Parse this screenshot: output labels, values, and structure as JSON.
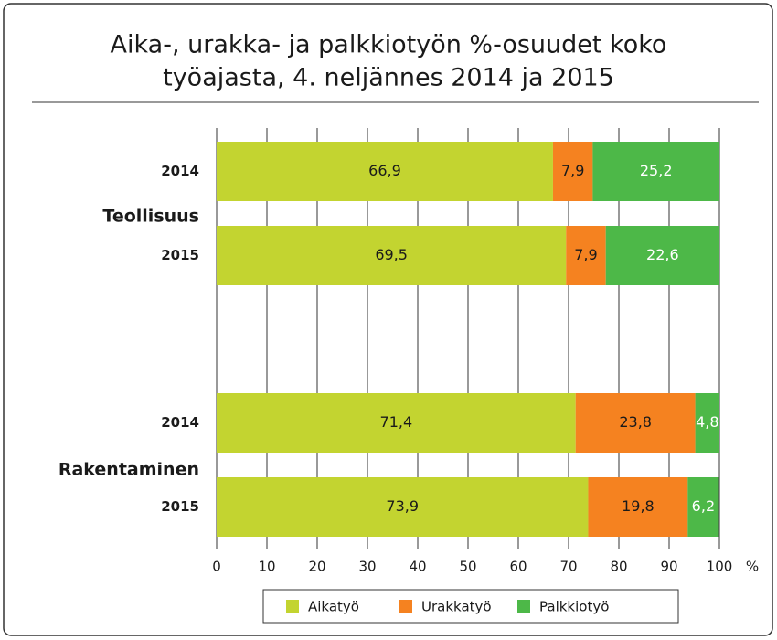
{
  "chart_data": {
    "type": "stacked-barh",
    "title": [
      "Aika-, urakka- ja palkkiotyön %-osuudet koko",
      "työajasta, 4. neljännes 2014 ja 2015"
    ],
    "groups": [
      "Teollisuus",
      "Rakentaminen"
    ],
    "categories": [
      "2014",
      "2015",
      "2014",
      "2015"
    ],
    "series": [
      {
        "name": "Aikatyö",
        "color": "#c3d430",
        "values": [
          66.9,
          69.5,
          71.4,
          73.9
        ],
        "value_labels": [
          "66,9",
          "69,5",
          "71,4",
          "73,9"
        ]
      },
      {
        "name": "Urakkatyö",
        "color": "#f58220",
        "values": [
          7.9,
          7.9,
          23.8,
          19.8
        ],
        "value_labels": [
          "7,9",
          "7,9",
          "23,8",
          "19,8"
        ]
      },
      {
        "name": "Palkkiotyö",
        "color": "#4db848",
        "values": [
          25.2,
          22.6,
          4.8,
          6.2
        ],
        "value_labels": [
          "25,2",
          "22,6",
          "4,8",
          "6,2"
        ]
      }
    ],
    "xlim": [
      0,
      100
    ],
    "xticks": [
      0,
      10,
      20,
      30,
      40,
      50,
      60,
      70,
      80,
      90,
      100
    ],
    "xlabel": "%",
    "grid": true
  }
}
